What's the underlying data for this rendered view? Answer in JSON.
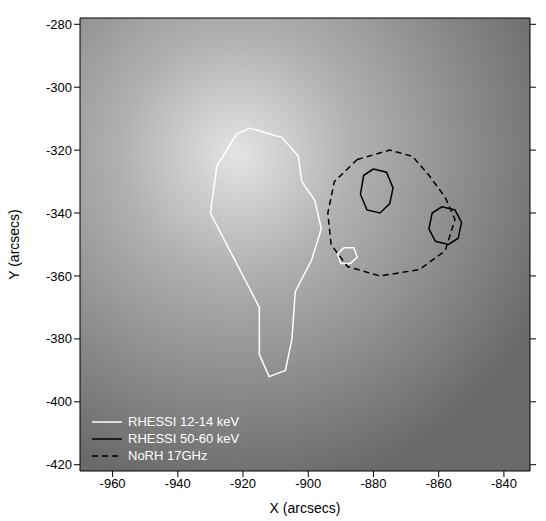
{
  "chart_data": {
    "type": "contour",
    "x_label": "X (arcsecs)",
    "y_label": "Y (arcsecs)",
    "xlim": [
      -970,
      -832
    ],
    "ylim": [
      -422,
      -278
    ],
    "xticks": [
      -960,
      -940,
      -920,
      -900,
      -880,
      -860,
      -840
    ],
    "yticks": [
      -420,
      -400,
      -380,
      -360,
      -340,
      -320,
      -300,
      -280
    ],
    "grid": false,
    "legend": "lower left",
    "series": [
      {
        "name": "RHESSI 12-14 keV",
        "color": "#ffffff",
        "line_style": "solid",
        "contours": [
          {
            "x": [
              -918,
              -908,
              -903,
              -902,
              -898,
              -896,
              -899,
              -904,
              -905,
              -907,
              -912,
              -915,
              -915,
              -920,
              -925,
              -930,
              -928,
              -922,
              -918
            ],
            "y": [
              -313,
              -316,
              -322,
              -330,
              -336,
              -345,
              -355,
              -365,
              -380,
              -390,
              -392,
              -385,
              -370,
              -360,
              -350,
              -340,
              -325,
              -315,
              -313
            ]
          },
          {
            "x": [
              -889,
              -886,
              -885,
              -887,
              -890,
              -891,
              -889
            ],
            "y": [
              -351,
              -351,
              -354,
              -356,
              -356,
              -353,
              -351
            ]
          }
        ]
      },
      {
        "name": "RHESSI 50-60 keV",
        "color": "#000000",
        "line_style": "solid",
        "contours": [
          {
            "x": [
              -880,
              -876,
              -874,
              -875,
              -878,
              -882,
              -884,
              -883,
              -880
            ],
            "y": [
              -326,
              -327,
              -332,
              -337,
              -340,
              -339,
              -334,
              -328,
              -326
            ]
          },
          {
            "x": [
              -859,
              -855,
              -853,
              -854,
              -857,
              -861,
              -863,
              -862,
              -859
            ],
            "y": [
              -338,
              -339,
              -343,
              -348,
              -350,
              -349,
              -345,
              -340,
              -338
            ]
          }
        ]
      },
      {
        "name": "NoRH 17GHz",
        "color": "#000000",
        "line_style": "dashed",
        "contours": [
          {
            "x": [
              -885,
              -875,
              -868,
              -863,
              -858,
              -855,
              -858,
              -866,
              -878,
              -888,
              -893,
              -894,
              -892,
              -885
            ],
            "y": [
              -323,
              -320,
              -322,
              -328,
              -335,
              -342,
              -352,
              -358,
              -360,
              -357,
              -350,
              -340,
              -330,
              -323
            ]
          }
        ]
      }
    ]
  }
}
